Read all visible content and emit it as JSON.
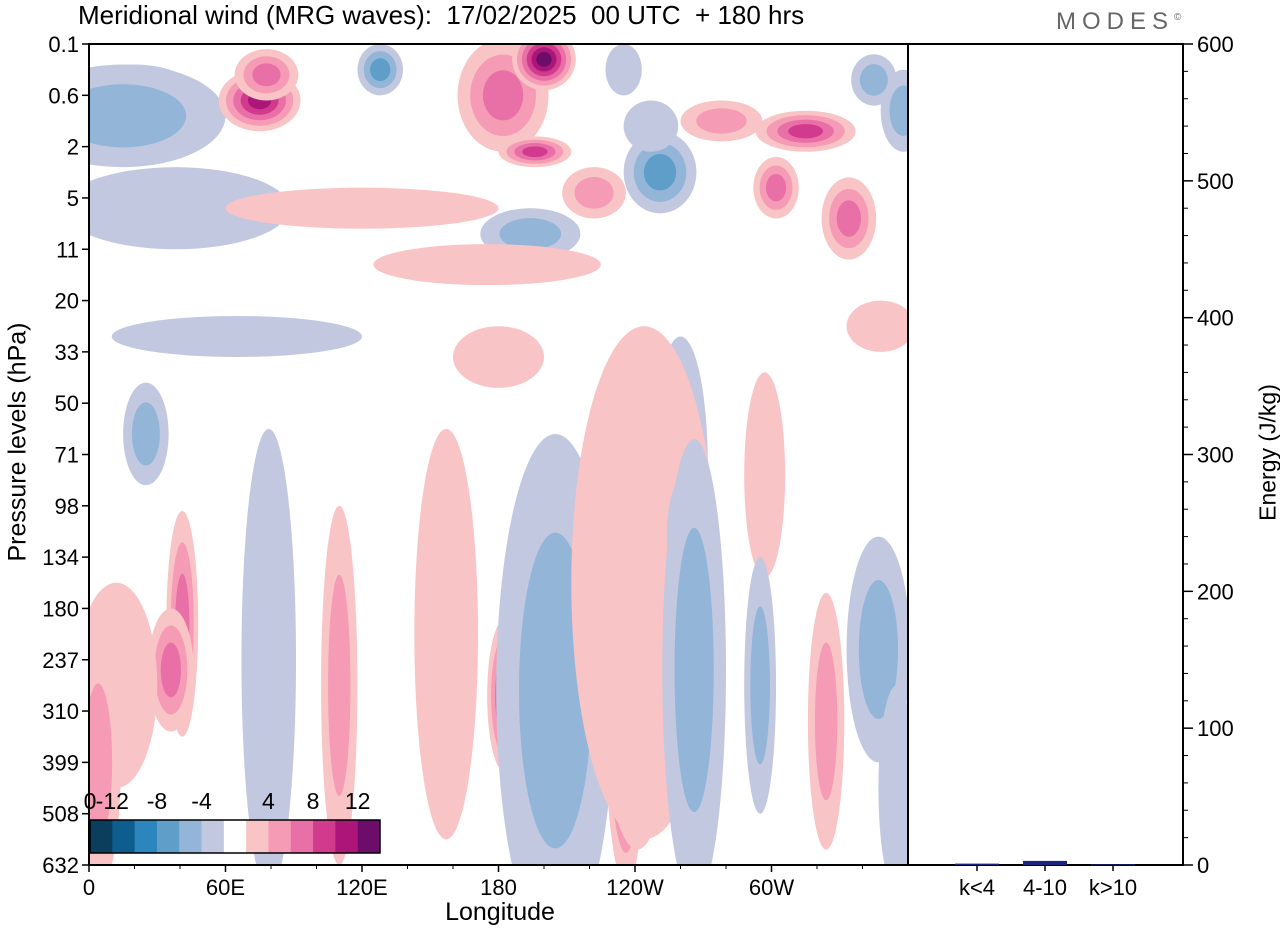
{
  "title": "Meridional wind (MRG waves):  17/02/2025  00 UTC  + 180 hrs",
  "logo_text": "MODES",
  "logo_mark": "©",
  "chart_data": [
    {
      "type": "heatmap",
      "name": "meridional-wind-hovmoller",
      "xlabel": "Longitude",
      "ylabel": "Pressure levels (hPa)",
      "x_ticks": [
        "0",
        "60E",
        "120E",
        "180",
        "120W",
        "60W"
      ],
      "y_ticks": [
        "0.1",
        "0.6",
        "2",
        "5",
        "11",
        "20",
        "33",
        "50",
        "71",
        "98",
        "134",
        "180",
        "237",
        "310",
        "399",
        "508",
        "632"
      ],
      "xlim": [
        0,
        360
      ],
      "ylim": [
        "0.1",
        "632"
      ],
      "colorbar": {
        "tick_labels": [
          "-12",
          "-8",
          "-4",
          "0",
          "4",
          "8",
          "12"
        ],
        "levels": [
          -14,
          -12,
          -10,
          -8,
          -6,
          -4,
          -2,
          2,
          4,
          6,
          8,
          10,
          12,
          14
        ],
        "colors": [
          "#0b3d5c",
          "#0d5d8f",
          "#2a86bd",
          "#5e9ec9",
          "#93b5d8",
          "#c2c8e0",
          "#ffffff",
          "#f8c4c6",
          "#f59bb5",
          "#e870a6",
          "#d23a8e",
          "#ab1678",
          "#6c0d6c"
        ]
      },
      "contour_blobs": [
        {
          "lon": 20,
          "lev": 1,
          "w": 28,
          "h": 0.6,
          "v": -7
        },
        {
          "lon": 15,
          "lev": 1.4,
          "w": 45,
          "h": 1.0,
          "v": -4
        },
        {
          "lon": 38,
          "lev": 3.2,
          "w": 50,
          "h": 0.8,
          "v": -3
        },
        {
          "lon": 75,
          "lev": 1.1,
          "w": 18,
          "h": 0.6,
          "v": 11
        },
        {
          "lon": 78,
          "lev": 0.6,
          "w": 14,
          "h": 0.5,
          "v": 6
        },
        {
          "lon": 128,
          "lev": 0.5,
          "w": 10,
          "h": 0.5,
          "v": -6
        },
        {
          "lon": 182,
          "lev": 1.0,
          "w": 20,
          "h": 1.1,
          "v": 7
        },
        {
          "lon": 200,
          "lev": 0.3,
          "w": 14,
          "h": 0.6,
          "v": 12
        },
        {
          "lon": 196,
          "lev": 2.1,
          "w": 16,
          "h": 0.3,
          "v": 9
        },
        {
          "lon": 222,
          "lev": 2.9,
          "w": 14,
          "h": 0.5,
          "v": 5
        },
        {
          "lon": 194,
          "lev": 3.7,
          "w": 22,
          "h": 0.5,
          "v": -5
        },
        {
          "lon": 251,
          "lev": 2.5,
          "w": 16,
          "h": 0.8,
          "v": -6
        },
        {
          "lon": 247,
          "lev": 1.6,
          "w": 12,
          "h": 0.5,
          "v": -3
        },
        {
          "lon": 278,
          "lev": 1.5,
          "w": 18,
          "h": 0.4,
          "v": 5
        },
        {
          "lon": 315,
          "lev": 1.7,
          "w": 22,
          "h": 0.4,
          "v": 9
        },
        {
          "lon": 302,
          "lev": 2.8,
          "w": 10,
          "h": 0.6,
          "v": 6
        },
        {
          "lon": 334,
          "lev": 3.4,
          "w": 12,
          "h": 0.8,
          "v": 7
        },
        {
          "lon": 358,
          "lev": 1.3,
          "w": 10,
          "h": 0.8,
          "v": -5
        },
        {
          "lon": 345,
          "lev": 0.7,
          "w": 10,
          "h": 0.5,
          "v": -4
        },
        {
          "lon": 235,
          "lev": 0.5,
          "w": 8,
          "h": 0.5,
          "v": -3
        },
        {
          "lon": 120,
          "lev": 3.2,
          "w": 60,
          "h": 0.4,
          "v": 2.5
        },
        {
          "lon": 175,
          "lev": 4.3,
          "w": 50,
          "h": 0.4,
          "v": 2.5
        },
        {
          "lon": 65,
          "lev": 5.7,
          "w": 55,
          "h": 0.4,
          "v": -2.5
        },
        {
          "lon": 180,
          "lev": 6.1,
          "w": 20,
          "h": 0.6,
          "v": 2.5
        },
        {
          "lon": 348,
          "lev": 5.5,
          "w": 15,
          "h": 0.5,
          "v": 2.5
        },
        {
          "lon": 25,
          "lev": 7.6,
          "w": 10,
          "h": 1.0,
          "v": -4
        },
        {
          "lon": 297,
          "lev": 8.4,
          "w": 9,
          "h": 2.0,
          "v": 3
        },
        {
          "lon": 260,
          "lev": 8.2,
          "w": 12,
          "h": 2.5,
          "v": -3
        },
        {
          "lon": 41,
          "lev": 11.3,
          "w": 7,
          "h": 2.2,
          "v": 6
        },
        {
          "lon": 36,
          "lev": 12.2,
          "w": 10,
          "h": 1.2,
          "v": 7
        },
        {
          "lon": 12,
          "lev": 12.5,
          "w": 18,
          "h": 2.0,
          "v": 3
        },
        {
          "lon": 4,
          "lev": 14.0,
          "w": 10,
          "h": 2.5,
          "v": 4
        },
        {
          "lon": 77,
          "lev": 12.5,
          "w": 7,
          "h": 3.0,
          "v": -6
        },
        {
          "lon": 79,
          "lev": 12.0,
          "w": 12,
          "h": 4.5,
          "v": -3
        },
        {
          "lon": 110,
          "lev": 12.5,
          "w": 8,
          "h": 3.5,
          "v": 5
        },
        {
          "lon": 157,
          "lev": 12.5,
          "w": 10,
          "h": 2.5,
          "v": 6
        },
        {
          "lon": 157,
          "lev": 11.5,
          "w": 14,
          "h": 4.0,
          "v": 3
        },
        {
          "lon": 183,
          "lev": 12.7,
          "w": 8,
          "h": 1.5,
          "v": 8
        },
        {
          "lon": 214,
          "lev": 12.0,
          "w": 8,
          "h": 3.8,
          "v": -14
        },
        {
          "lon": 210,
          "lev": 12.3,
          "w": 16,
          "h": 4.5,
          "v": -9
        },
        {
          "lon": 205,
          "lev": 12.6,
          "w": 26,
          "h": 5.0,
          "v": -4
        },
        {
          "lon": 236,
          "lev": 12.2,
          "w": 10,
          "h": 4.2,
          "v": 13
        },
        {
          "lon": 241,
          "lev": 11.2,
          "w": 18,
          "h": 4.5,
          "v": 7
        },
        {
          "lon": 244,
          "lev": 10.5,
          "w": 32,
          "h": 5.0,
          "v": 3
        },
        {
          "lon": 262,
          "lev": 9.6,
          "w": 8,
          "h": 1.2,
          "v": -13
        },
        {
          "lon": 268,
          "lev": 11.2,
          "w": 8,
          "h": 2.2,
          "v": -9
        },
        {
          "lon": 266,
          "lev": 12.2,
          "w": 14,
          "h": 4.5,
          "v": -4
        },
        {
          "lon": 295,
          "lev": 12.5,
          "w": 7,
          "h": 2.5,
          "v": -4
        },
        {
          "lon": 324,
          "lev": 13.2,
          "w": 8,
          "h": 2.5,
          "v": 5
        },
        {
          "lon": 349,
          "lev": 11.4,
          "w": 8,
          "h": 1.3,
          "v": -9
        },
        {
          "lon": 347,
          "lev": 11.8,
          "w": 14,
          "h": 2.2,
          "v": -4
        },
        {
          "lon": 355,
          "lev": 14.5,
          "w": 8,
          "h": 2.0,
          "v": -3
        }
      ]
    },
    {
      "type": "bar",
      "name": "energy-bars",
      "categories": [
        "k<4",
        "4-10",
        "k>10"
      ],
      "values": [
        1,
        3,
        0.5
      ],
      "ylabel": "Energy (J/kg)",
      "ylim": [
        0,
        600
      ],
      "y_ticks": [
        "0",
        "100",
        "200",
        "300",
        "400",
        "500",
        "600"
      ],
      "bar_color": "#1a237e"
    }
  ]
}
